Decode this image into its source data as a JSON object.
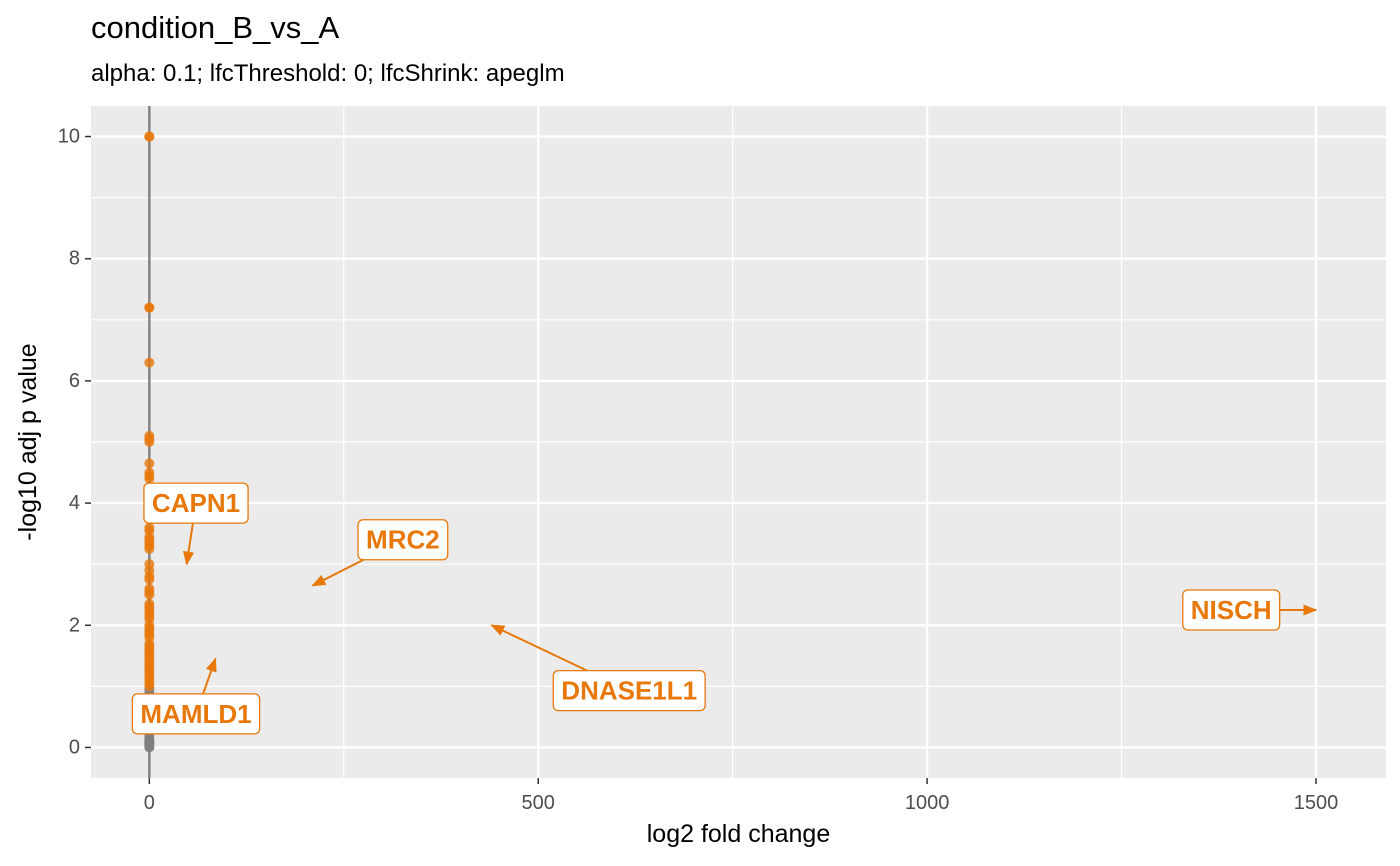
{
  "chart_data": {
    "type": "scatter",
    "title": "condition_B_vs_A",
    "subtitle": "alpha: 0.1;  lfcThreshold: 0;  lfcShrink: apeglm",
    "xlabel": "log2 fold change",
    "ylabel": "-log10 adj p value",
    "xlim": [
      -75,
      1590
    ],
    "ylim": [
      -0.5,
      10.5
    ],
    "x_ticks": [
      0,
      500,
      1000,
      1500
    ],
    "y_ticks": [
      0,
      2,
      4,
      6,
      8,
      10
    ],
    "grid": true,
    "vline_x": 0,
    "colors": {
      "significant": "#e8780a",
      "not_significant": "#7f7f7f",
      "panel": "#ebebeb",
      "grid": "#ffffff",
      "vline": "#7f7f7f"
    },
    "significant_points_y": [
      10.0,
      10.0,
      7.2,
      7.2,
      6.3,
      5.1,
      5.05,
      5.0,
      4.65,
      4.5,
      4.45,
      4.4,
      4.2,
      4.0,
      3.95,
      3.9,
      3.8,
      3.6,
      3.55,
      3.45,
      3.4,
      3.35,
      3.3,
      3.25,
      3.0,
      2.9,
      2.8,
      2.75,
      2.6,
      2.55,
      2.5,
      2.35,
      2.3,
      2.25,
      2.2,
      2.15,
      2.1,
      2.0,
      1.95,
      1.9,
      1.85,
      1.8,
      1.7,
      1.65,
      1.6,
      1.55,
      1.5,
      1.45,
      1.4,
      1.35,
      1.3,
      1.25,
      1.2,
      1.15,
      1.1,
      1.05,
      1.0
    ],
    "nonsignificant_points_y": [
      0.95,
      0.9,
      0.85,
      0.8,
      0.75,
      0.7,
      0.65,
      0.6,
      0.55,
      0.5,
      0.45,
      0.4,
      0.35,
      0.3,
      0.25,
      0.2,
      0.15,
      0.12,
      0.1,
      0.08,
      0.06,
      0.04,
      0.02,
      0.0
    ],
    "annotations": [
      {
        "label": "CAPN1",
        "point": [
          48,
          3.0
        ],
        "label_pos": [
          60,
          4.0
        ]
      },
      {
        "label": "MRC2",
        "point": [
          210,
          2.65
        ],
        "label_pos": [
          326,
          3.4
        ]
      },
      {
        "label": "MAMLD1",
        "point": [
          85,
          1.45
        ],
        "label_pos": [
          60,
          0.55
        ]
      },
      {
        "label": "DNASE1L1",
        "point": [
          440,
          2.0
        ],
        "label_pos": [
          617,
          0.93
        ]
      },
      {
        "label": "NISCH",
        "point": [
          1500,
          2.25
        ],
        "label_pos": [
          1391,
          2.25
        ]
      }
    ]
  }
}
